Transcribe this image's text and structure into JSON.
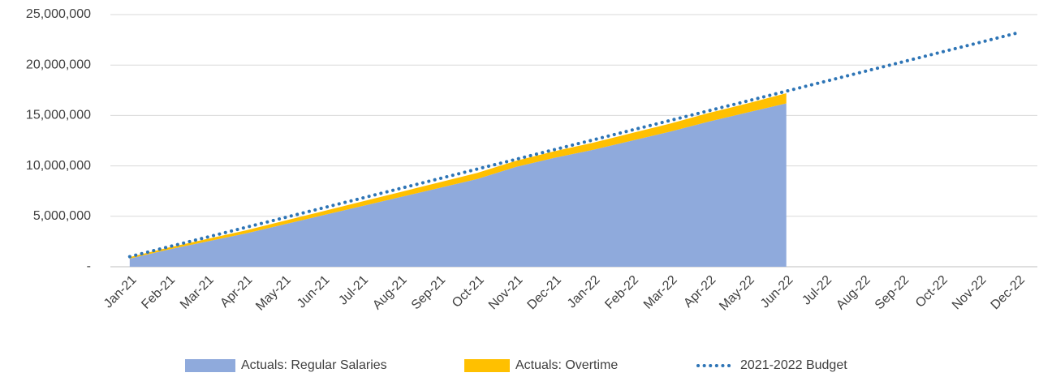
{
  "chart_data": {
    "type": "stacked-area-line",
    "categories": [
      "Jan-21",
      "Feb-21",
      "Mar-21",
      "Apr-21",
      "May-21",
      "Jun-21",
      "Jul-21",
      "Aug-21",
      "Sep-21",
      "Oct-21",
      "Nov-21",
      "Dec-21",
      "Jan-22",
      "Feb-22",
      "Mar-22",
      "Apr-22",
      "May-22",
      "Jun-22",
      "Jul-22",
      "Aug-22",
      "Sep-22",
      "Oct-22",
      "Nov-22",
      "Dec-22"
    ],
    "series": [
      {
        "name": "Actuals: Regular Salaries",
        "color": "#8faadc",
        "kind": "area",
        "values": [
          800000,
          1700000,
          2500000,
          3300000,
          4200000,
          5100000,
          6000000,
          6900000,
          7800000,
          8700000,
          9900000,
          10800000,
          11600000,
          12500000,
          13400000,
          14400000,
          15300000,
          16200000,
          null,
          null,
          null,
          null,
          null,
          null
        ]
      },
      {
        "name": "Actuals: Overtime",
        "color": "#ffc000",
        "kind": "area",
        "values": [
          150000,
          200000,
          250000,
          300000,
          350000,
          400000,
          450000,
          500000,
          550000,
          600000,
          600000,
          650000,
          700000,
          750000,
          800000,
          850000,
          900000,
          1000000,
          null,
          null,
          null,
          null,
          null,
          null
        ]
      },
      {
        "name": "2021-2022 Budget",
        "color": "#2e75b6",
        "kind": "dotted-line",
        "values": [
          1000000,
          1970000,
          2930000,
          3900000,
          4860000,
          5830000,
          6790000,
          7760000,
          8720000,
          9690000,
          10650000,
          11620000,
          12580000,
          13550000,
          14510000,
          15480000,
          16440000,
          17410000,
          18370000,
          19340000,
          20300000,
          21270000,
          22230000,
          23200000
        ]
      }
    ],
    "ylim": [
      0,
      25000000
    ],
    "yticks": [
      {
        "value": 0,
        "label": "-"
      },
      {
        "value": 5000000,
        "label": "5,000,000"
      },
      {
        "value": 10000000,
        "label": "10,000,000"
      },
      {
        "value": 15000000,
        "label": "15,000,000"
      },
      {
        "value": 20000000,
        "label": "20,000,000"
      },
      {
        "value": 25000000,
        "label": "25,000,000"
      }
    ],
    "grid": true,
    "legend": "bottom"
  }
}
